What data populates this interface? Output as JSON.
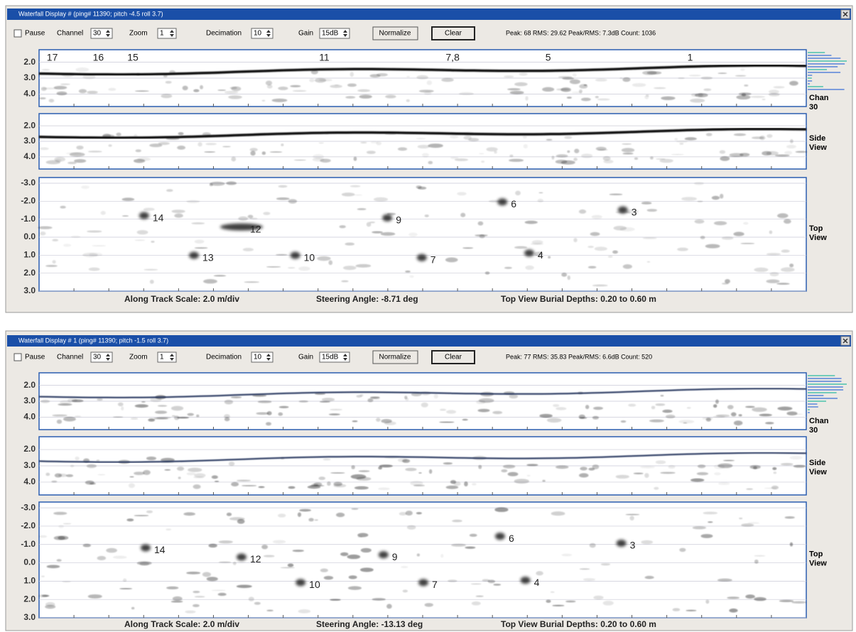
{
  "windows": [
    {
      "title": "Waterfall Display # (ping# 11390; pitch -4.5 roll 3.7)",
      "controls": {
        "pause": "Pause",
        "channel_label": "Channel",
        "channel": "30",
        "zoom_label": "Zoom",
        "zoom": "1",
        "decimation_label": "Decimation",
        "decimation": "10",
        "gain_label": "Gain",
        "gain": "15dB",
        "normalize": "Normalize",
        "clear": "Clear"
      },
      "stats": "Peak: 68  RMS: 29.62  Peak/RMS: 7.3dB  Count: 1036",
      "panels": [
        {
          "ticks": [
            "2.0",
            "3.0",
            "4.0"
          ],
          "label": "Chan 30",
          "targets": [
            "17",
            "16",
            "15",
            "11",
            "7,8",
            "5",
            "1"
          ]
        },
        {
          "ticks": [
            "2.0",
            "3.0",
            "4.0"
          ],
          "label": "Side View",
          "targets": []
        },
        {
          "ticks": [
            "-3.0",
            "-2.0",
            "-1.0",
            "0.0",
            "1.0",
            "2.0",
            "3.0"
          ],
          "label": "Top View",
          "targets": [
            "14",
            "12",
            "13",
            "10",
            "9",
            "7",
            "6",
            "4",
            "3"
          ]
        }
      ],
      "footer": [
        "Along Track Scale: 2.0 m/div",
        "Steering Angle: -8.71 deg",
        "Top View Burial Depths: 0.20 to 0.60 m"
      ]
    },
    {
      "title": "Waterfall Display # 1 (ping# 11390; pitch -1.5 roll 3.7)",
      "controls": {
        "pause": "Pause",
        "channel_label": "Channel",
        "channel": "30",
        "zoom_label": "Zoom",
        "zoom": "1",
        "decimation_label": "Decimation",
        "decimation": "10",
        "gain_label": "Gain",
        "gain": "15dB",
        "normalize": "Normalize",
        "clear": "Clear"
      },
      "stats": "Peak: 77  RMS: 35.83  Peak/RMS: 6.6dB  Count: 520",
      "panels": [
        {
          "ticks": [
            "2.0",
            "3.0",
            "4.0"
          ],
          "label": "Chan 30",
          "targets": []
        },
        {
          "ticks": [
            "2.0",
            "3.0",
            "4.0"
          ],
          "label": "Side View",
          "targets": []
        },
        {
          "ticks": [
            "-3.0",
            "-2.0",
            "-1.0",
            "0.0",
            "1.0",
            "2.0",
            "3.0"
          ],
          "label": "Top View",
          "targets": [
            "14",
            "12",
            "9",
            "10",
            "7",
            "6",
            "4",
            "3"
          ]
        }
      ],
      "footer": [
        "Along Track Scale: 2.0 m/div",
        "Steering Angle: -13.13 deg",
        "Top View Burial Depths: 0.20 to 0.60 m"
      ]
    }
  ]
}
